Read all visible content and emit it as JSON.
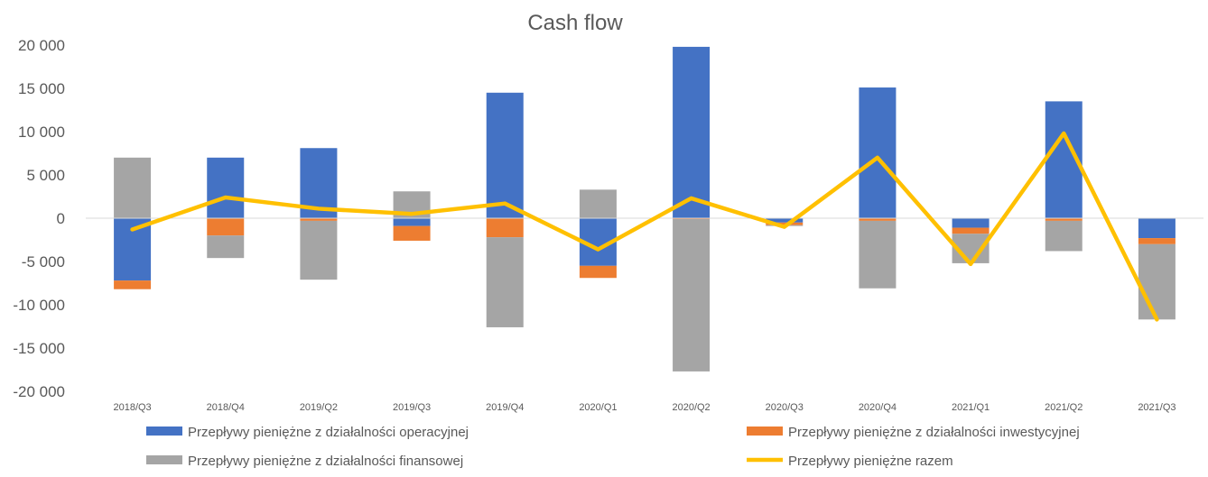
{
  "chart_data": {
    "type": "bar",
    "title": "Cash flow",
    "categories": [
      "2018/Q3",
      "2018/Q4",
      "2019/Q2",
      "2019/Q3",
      "2019/Q4",
      "2020/Q1",
      "2020/Q2",
      "2020/Q3",
      "2020/Q4",
      "2021/Q1",
      "2021/Q2",
      "2021/Q3"
    ],
    "ylim": [
      -20000,
      20000
    ],
    "yticks": [
      20000,
      15000,
      10000,
      5000,
      0,
      -5000,
      -10000,
      -15000,
      -20000
    ],
    "ytick_labels": [
      "20 000",
      "15 000",
      "10 000",
      "5 000",
      "0",
      "-5 000",
      "-10 000",
      "-15 000",
      "-20 000"
    ],
    "grid": false,
    "legend_position": "bottom",
    "series": [
      {
        "name": "Przepływy pieniężne z działalności operacyjnej",
        "kind": "bar",
        "color": "#4472C4",
        "values": [
          -7200,
          7000,
          8100,
          -900,
          14500,
          -5500,
          19800,
          -500,
          15100,
          -1100,
          13500,
          -2300
        ]
      },
      {
        "name": "Przepływy pieniężne z działalności inwestycyjnej",
        "kind": "bar",
        "color": "#ED7D31",
        "values": [
          -1000,
          -2000,
          -300,
          -1700,
          -2200,
          -1400,
          -100,
          -300,
          -300,
          -700,
          -300,
          -700
        ]
      },
      {
        "name": "Przepływy pieniężne z działalności finansowej",
        "kind": "bar",
        "color": "#A5A5A5",
        "values": [
          7000,
          -2600,
          -6800,
          3100,
          -10400,
          3300,
          -17600,
          -100,
          -7800,
          -3400,
          -3500,
          -8700
        ]
      },
      {
        "name": "Przepływy pieniężne razem",
        "kind": "line",
        "color": "#FFC000",
        "values": [
          -1300,
          2400,
          1100,
          500,
          1700,
          -3600,
          2300,
          -1000,
          7000,
          -5300,
          9800,
          -11700
        ]
      }
    ]
  }
}
